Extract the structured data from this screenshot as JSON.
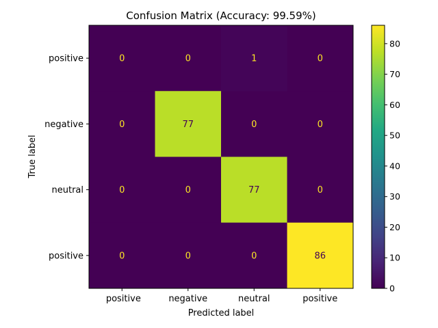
{
  "chart_data": {
    "type": "heatmap",
    "title": "Confusion Matrix (Accuracy: 99.59%)",
    "xlabel": "Predicted label",
    "ylabel": "True label",
    "x_categories": [
      " positive",
      "negative",
      "neutral",
      "positive"
    ],
    "y_categories": [
      " positive",
      "negative",
      "neutral",
      "positive"
    ],
    "values": [
      [
        0,
        0,
        1,
        0
      ],
      [
        0,
        77,
        0,
        0
      ],
      [
        0,
        0,
        77,
        0
      ],
      [
        0,
        0,
        0,
        86
      ]
    ],
    "colormap": "viridis",
    "colorbar": {
      "range": [
        0,
        86
      ],
      "ticks": [
        0,
        10,
        20,
        30,
        40,
        50,
        60,
        70,
        80
      ]
    },
    "text_color_light": "#fde725",
    "text_color_dark": "#440154"
  }
}
